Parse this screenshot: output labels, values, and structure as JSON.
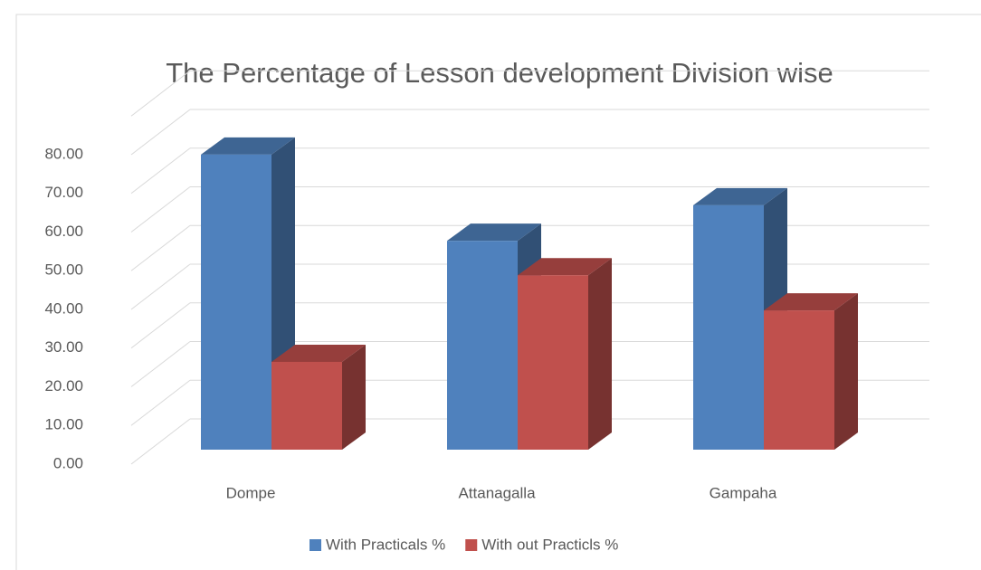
{
  "chart_data": {
    "type": "bar3d",
    "title": "The Percentage of Lesson development Division wise",
    "categories": [
      "Dompe",
      "Attanagalla",
      "Gampaha"
    ],
    "series": [
      {
        "name": "With Practicals %",
        "color": "#4f81bd",
        "values": [
          76.3,
          54.0,
          63.2
        ]
      },
      {
        "name": "With out Practicls %",
        "color": "#c0504d",
        "values": [
          22.7,
          45.1,
          36.0
        ]
      }
    ],
    "ylim": [
      0,
      90
    ],
    "yticks": [
      {
        "value": 0,
        "label": "0.00"
      },
      {
        "value": 10,
        "label": "10.00"
      },
      {
        "value": 20,
        "label": "20.00"
      },
      {
        "value": 30,
        "label": "30.00"
      },
      {
        "value": 40,
        "label": "40.00"
      },
      {
        "value": 50,
        "label": "50.00"
      },
      {
        "value": 60,
        "label": "60.00"
      },
      {
        "value": 70,
        "label": "70.00"
      },
      {
        "value": 80,
        "label": "80.00"
      }
    ],
    "grid": true,
    "legend": "bottom"
  }
}
